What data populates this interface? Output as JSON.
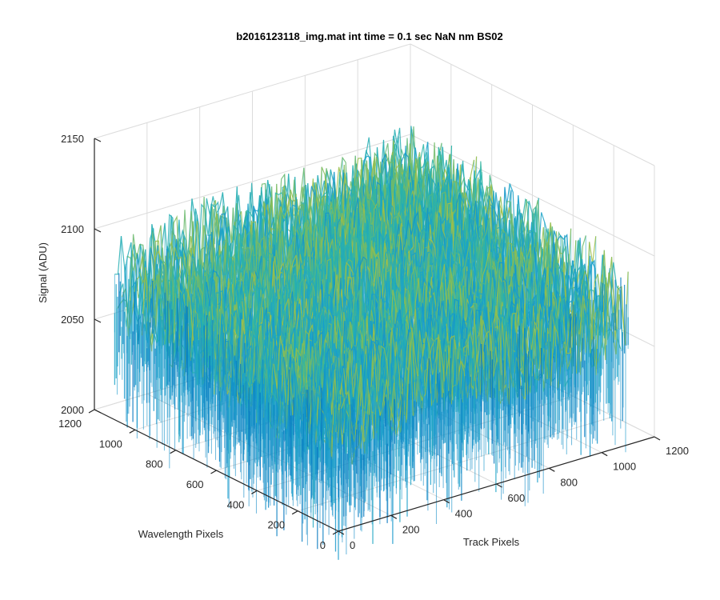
{
  "chart_data": {
    "type": "surface",
    "title": "b2016123118_img.mat int time = 0.1 sec  NaN nm BS02",
    "xlabel": "Track Pixels",
    "ylabel": "Wavelength Pixels",
    "zlabel": "Signal (ADU)",
    "xlim": [
      0,
      1200
    ],
    "ylim": [
      0,
      1200
    ],
    "zlim": [
      2000,
      2150
    ],
    "xticks": [
      "0",
      "200",
      "400",
      "600",
      "800",
      "1000",
      "1200"
    ],
    "yticks": [
      "0",
      "200",
      "400",
      "600",
      "800",
      "1000",
      "1200"
    ],
    "zticks": [
      "2000",
      "2050",
      "2100",
      "2150"
    ],
    "grid": true,
    "colormap": "parula",
    "colors": {
      "low": "#0072bd",
      "mid": "#2cb5a6",
      "high": "#eccd30",
      "axis": "#262626",
      "grid": "#dcdcdc"
    },
    "surface_summary": {
      "x_extent": [
        0,
        1100
      ],
      "y_extent": [
        0,
        1100
      ],
      "mean_signal": 2075,
      "min_signal": 2005,
      "max_signal": 2140,
      "description_points": [
        {
          "x": 0,
          "y": 0,
          "z": 2020
        },
        {
          "x": 1100,
          "y": 0,
          "z": 2070
        },
        {
          "x": 0,
          "y": 1100,
          "z": 2075
        },
        {
          "x": 1100,
          "y": 1100,
          "z": 2110
        },
        {
          "x": 550,
          "y": 550,
          "z": 2080
        }
      ]
    }
  }
}
